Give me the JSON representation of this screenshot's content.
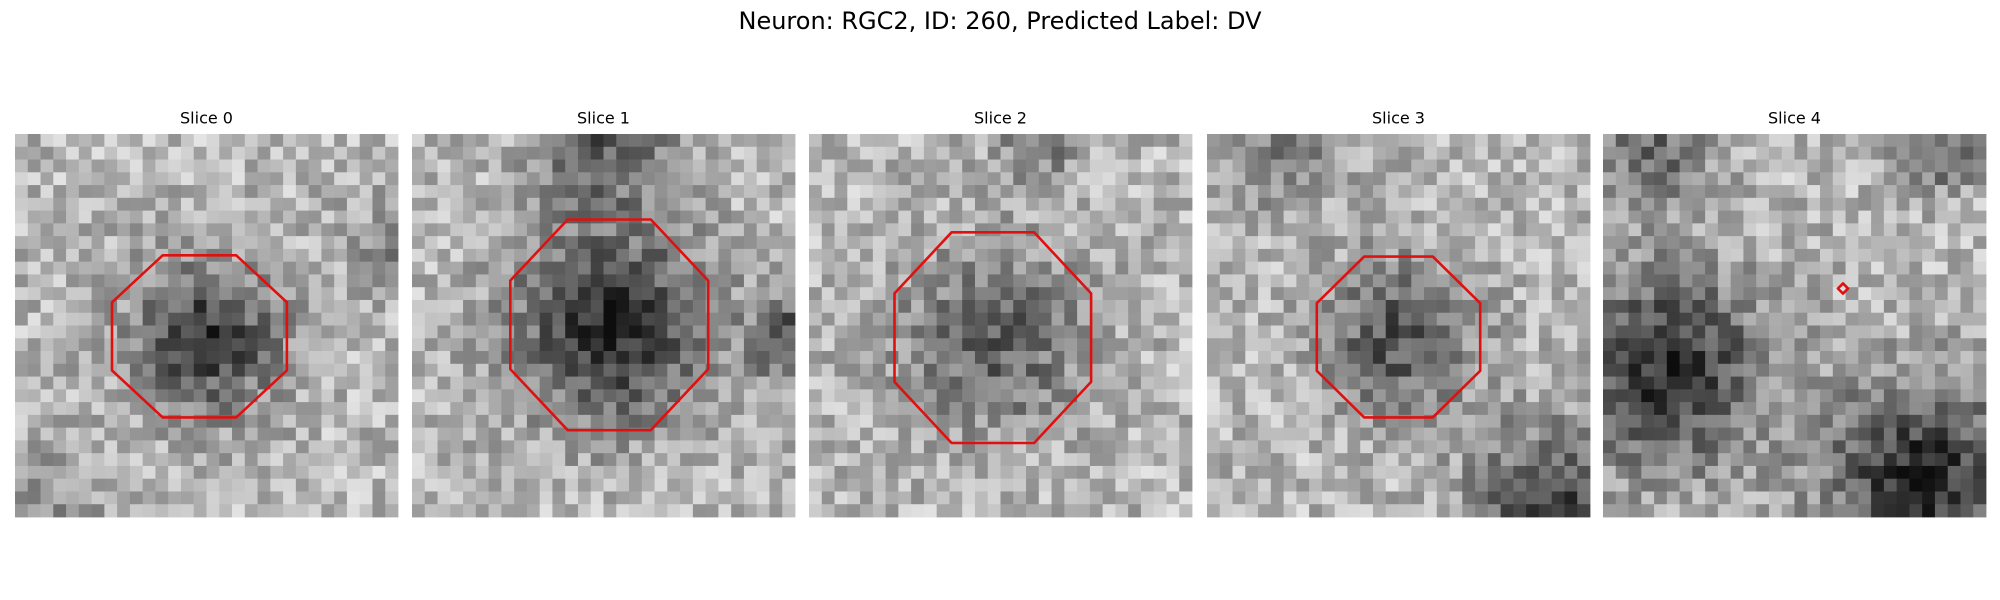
{
  "header": {
    "title": "Neuron: RGC2, ID: 260, Predicted Label: DV"
  },
  "panels": [
    {
      "title": "Slice 0"
    },
    {
      "title": "Slice 1"
    },
    {
      "title": "Slice 2"
    },
    {
      "title": "Slice 3"
    },
    {
      "title": "Slice 4"
    }
  ]
}
